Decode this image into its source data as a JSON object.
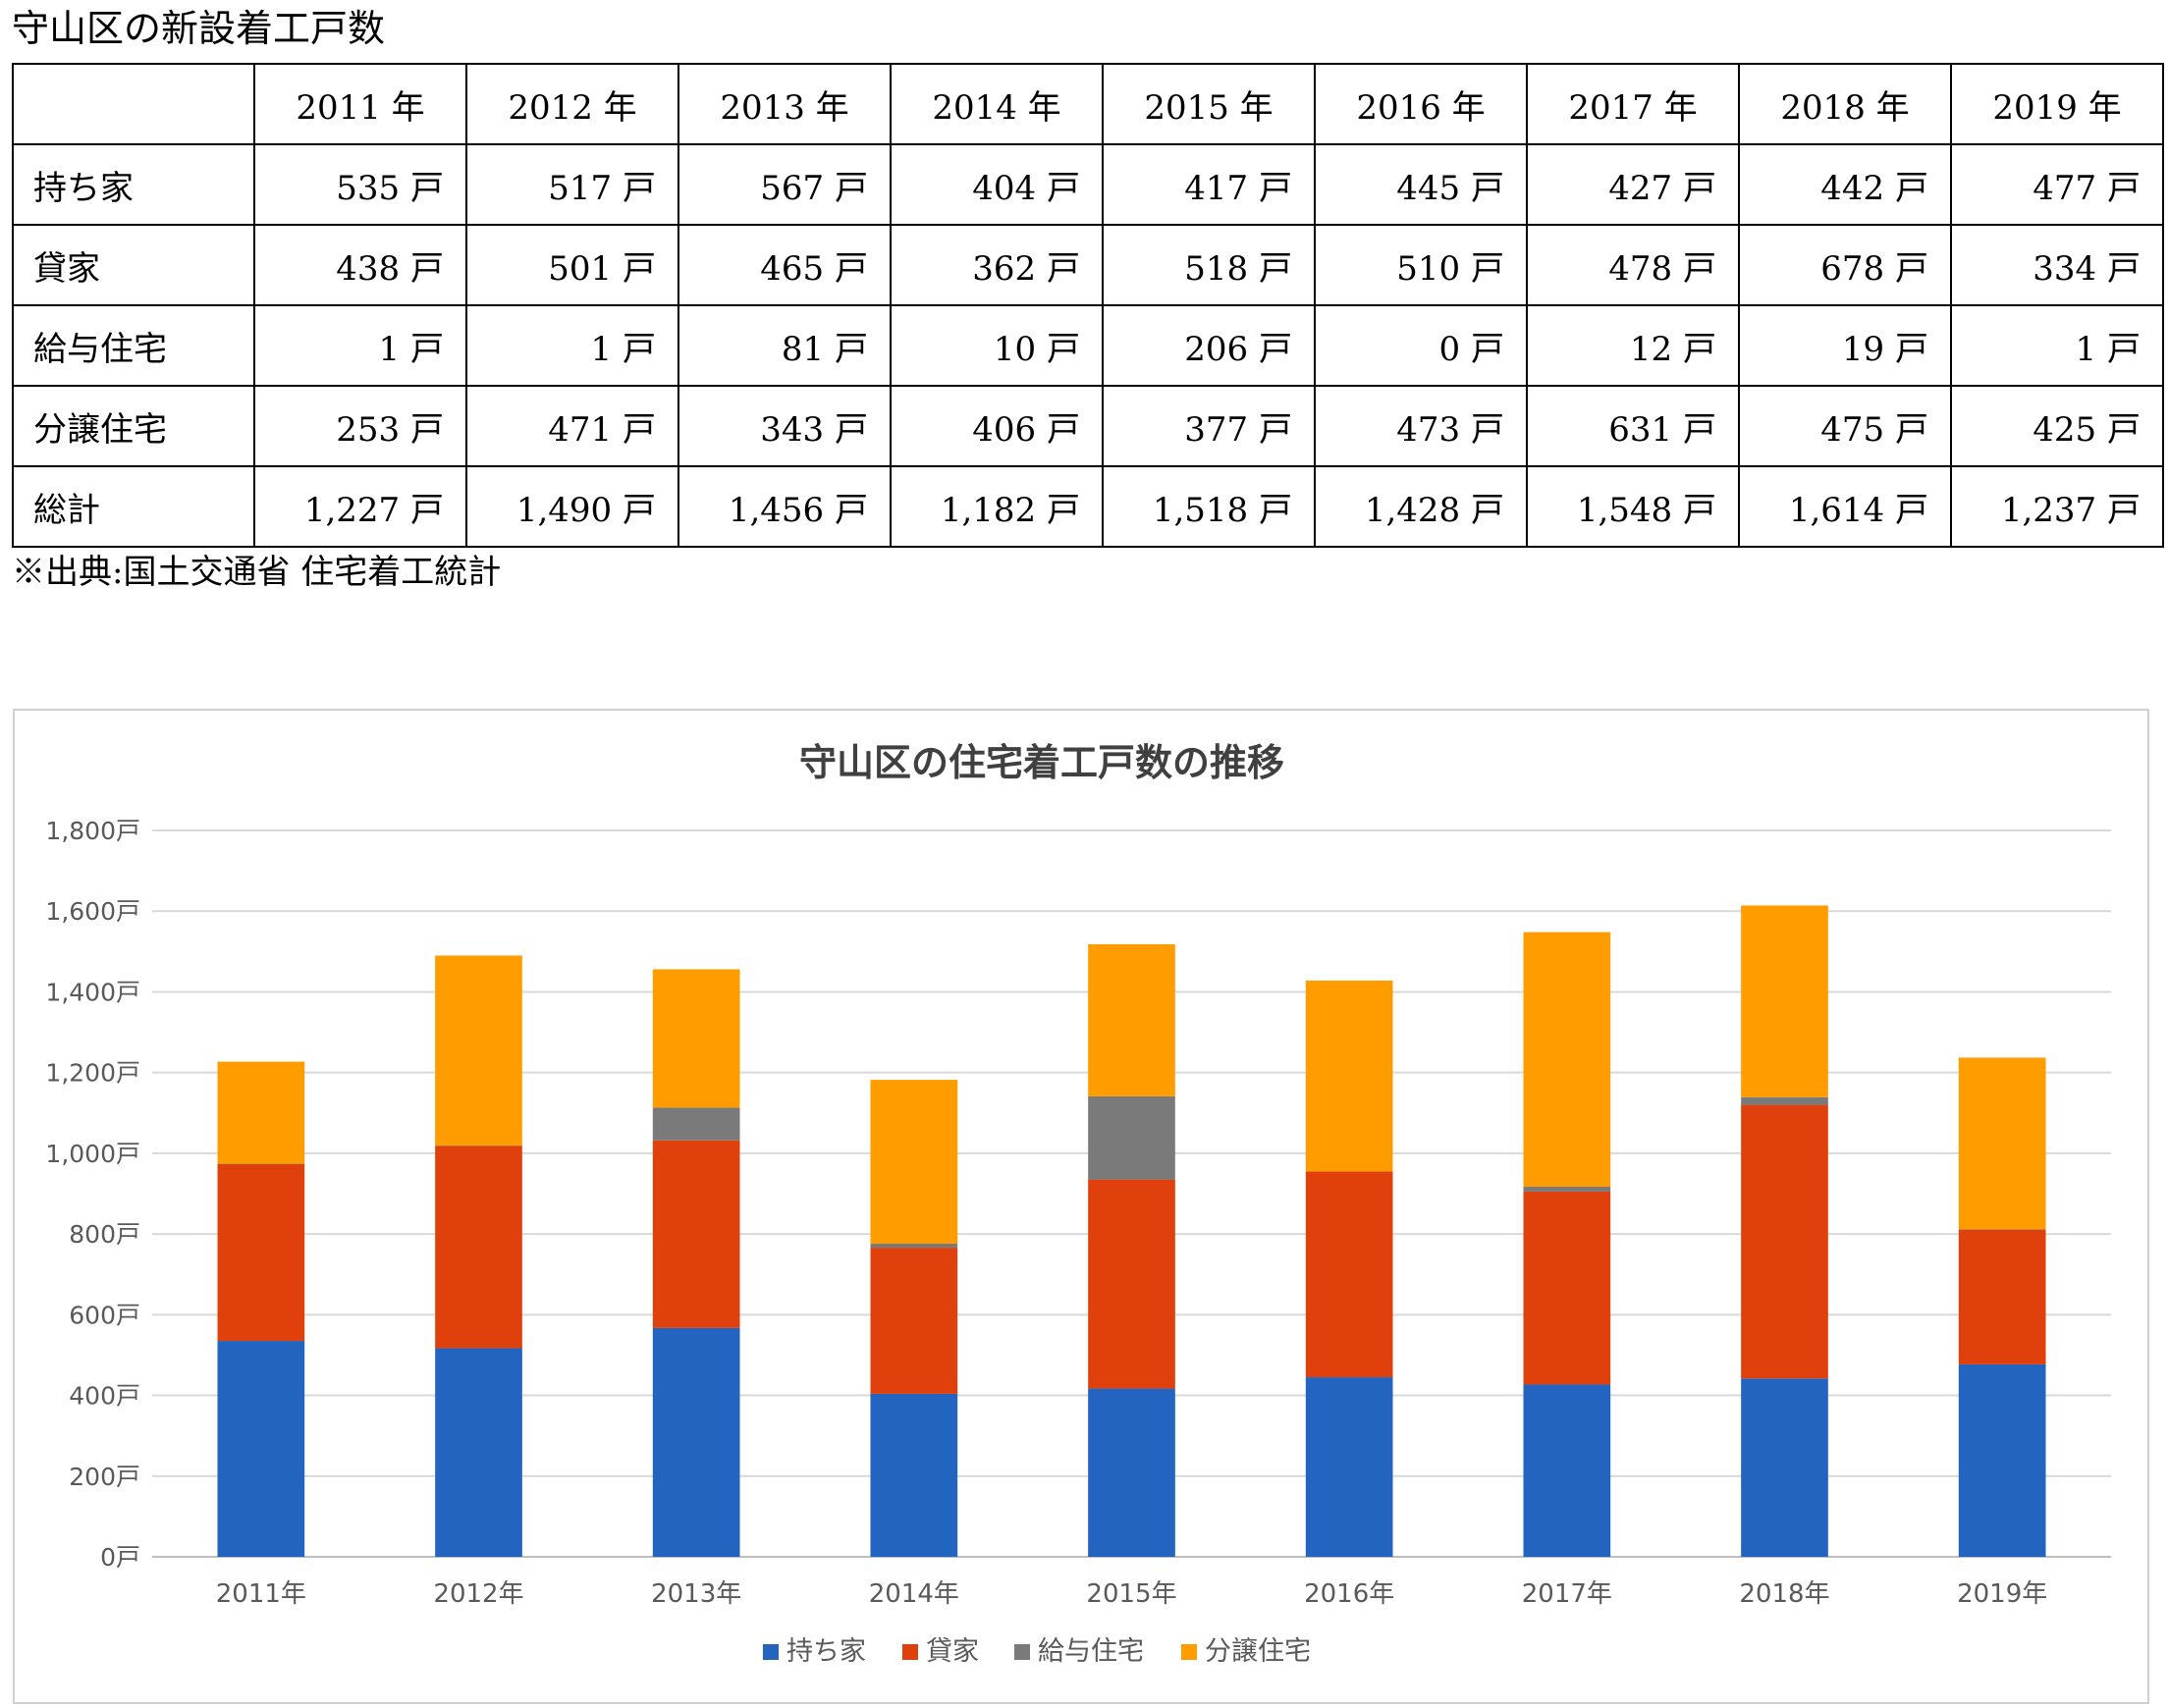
{
  "table": {
    "title": "守山区の新設着工戸数",
    "corner": "",
    "headers": [
      "2011 年",
      "2012 年",
      "2013 年",
      "2014 年",
      "2015 年",
      "2016 年",
      "2017 年",
      "2018 年",
      "2019 年"
    ],
    "rows": [
      {
        "label": "持ち家",
        "cells": [
          "535 戸",
          "517 戸",
          "567 戸",
          "404 戸",
          "417 戸",
          "445 戸",
          "427 戸",
          "442 戸",
          "477 戸"
        ]
      },
      {
        "label": "貸家",
        "cells": [
          "438 戸",
          "501 戸",
          "465 戸",
          "362 戸",
          "518 戸",
          "510 戸",
          "478 戸",
          "678 戸",
          "334 戸"
        ]
      },
      {
        "label": "給与住宅",
        "cells": [
          "1 戸",
          "1 戸",
          "81 戸",
          "10 戸",
          "206 戸",
          "0 戸",
          "12 戸",
          "19 戸",
          "1 戸"
        ]
      },
      {
        "label": "分譲住宅",
        "cells": [
          "253 戸",
          "471 戸",
          "343 戸",
          "406 戸",
          "377 戸",
          "473 戸",
          "631 戸",
          "475 戸",
          "425 戸"
        ]
      },
      {
        "label": "総計",
        "cells": [
          "1,227 戸",
          "1,490 戸",
          "1,456 戸",
          "1,182 戸",
          "1,518 戸",
          "1,428 戸",
          "1,548 戸",
          "1,614 戸",
          "1,237 戸"
        ]
      }
    ],
    "source": "※出典:国土交通省 住宅着工統計"
  },
  "chart_data": {
    "type": "bar",
    "stacked": true,
    "title": "守山区の住宅着工戸数の推移",
    "xlabel": "",
    "ylabel": "",
    "categories": [
      "2011年",
      "2012年",
      "2013年",
      "2014年",
      "2015年",
      "2016年",
      "2017年",
      "2018年",
      "2019年"
    ],
    "ylim": [
      0,
      1800
    ],
    "ytick_step": 200,
    "ytick_suffix": "戸",
    "grid": true,
    "legend_position": "bottom",
    "series": [
      {
        "name": "持ち家",
        "color": "#2264c0",
        "values": [
          535,
          517,
          567,
          404,
          417,
          445,
          427,
          442,
          477
        ]
      },
      {
        "name": "貸家",
        "color": "#e0400b",
        "values": [
          438,
          501,
          465,
          362,
          518,
          510,
          478,
          678,
          334
        ]
      },
      {
        "name": "給与住宅",
        "color": "#7a7a7a",
        "values": [
          1,
          1,
          81,
          10,
          206,
          0,
          12,
          19,
          1
        ]
      },
      {
        "name": "分譲住宅",
        "color": "#ff9c00",
        "values": [
          253,
          471,
          343,
          406,
          377,
          473,
          631,
          475,
          425
        ]
      }
    ]
  }
}
